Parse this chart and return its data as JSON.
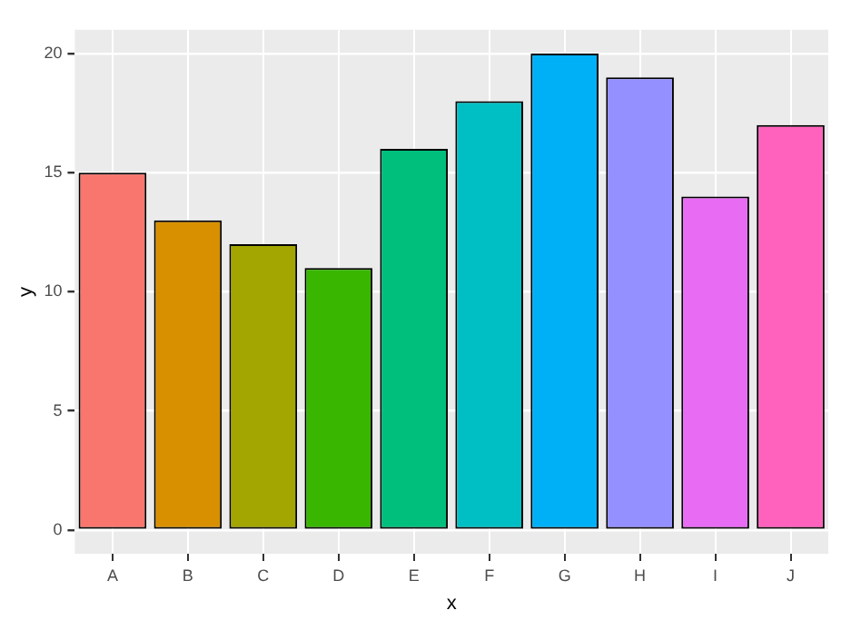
{
  "chart_data": {
    "type": "bar",
    "xlabel": "x",
    "ylabel": "y",
    "categories": [
      "A",
      "B",
      "C",
      "D",
      "E",
      "F",
      "G",
      "H",
      "I",
      "J"
    ],
    "values": [
      15,
      13,
      12,
      11,
      16,
      18,
      20,
      19,
      14,
      17
    ],
    "colors": [
      "#f8766d",
      "#d89000",
      "#a3a500",
      "#39b600",
      "#00bf7d",
      "#00bfc4",
      "#00b0f6",
      "#9590ff",
      "#e76bf3",
      "#ff62bc"
    ],
    "ylim": [
      -1,
      21
    ],
    "yticks": [
      0,
      5,
      10,
      15,
      20
    ],
    "grid": true,
    "legend": false
  }
}
